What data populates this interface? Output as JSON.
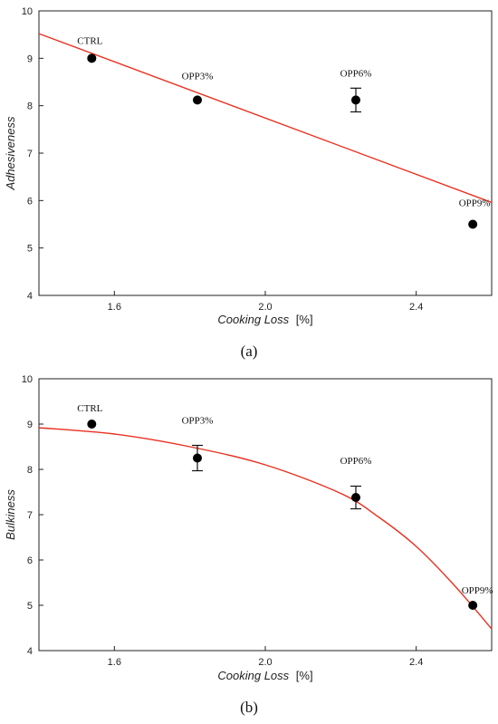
{
  "chart_data": [
    {
      "type": "scatter",
      "panel_label": "(a)",
      "xlabel": "Cooking Loss",
      "xunit": "[%]",
      "ylabel": "Adhesiveness",
      "xlim": [
        1.4,
        2.6
      ],
      "ylim": [
        4,
        10
      ],
      "xticks": [
        "1.6",
        "2.0",
        "2.4"
      ],
      "yticks": [
        "4",
        "5",
        "6",
        "7",
        "8",
        "9",
        "10"
      ],
      "xtick_values": [
        1.6,
        2.0,
        2.4
      ],
      "ytick_values": [
        4,
        5,
        6,
        7,
        8,
        9,
        10
      ],
      "points": [
        {
          "label": "CTRL",
          "x": 1.54,
          "y": 9.0,
          "err": 0
        },
        {
          "label": "OPP3%",
          "x": 1.82,
          "y": 8.12,
          "err": 0
        },
        {
          "label": "OPP6%",
          "x": 2.24,
          "y": 8.12,
          "err": 0.25
        },
        {
          "label": "OPP9%",
          "x": 2.55,
          "y": 5.5,
          "err": 0
        }
      ],
      "fit": {
        "type": "linear",
        "color": "#e8301f",
        "x": [
          1.4,
          2.6
        ],
        "y": [
          9.52,
          5.96
        ]
      },
      "grid": false
    },
    {
      "type": "scatter",
      "panel_label": "(b)",
      "xlabel": "Cooking Loss",
      "xunit": "[%]",
      "ylabel": "Bulkiness",
      "xlim": [
        1.4,
        2.6
      ],
      "ylim": [
        4,
        10
      ],
      "xticks": [
        "1.6",
        "2.0",
        "2.4"
      ],
      "yticks": [
        "4",
        "5",
        "6",
        "7",
        "8",
        "9",
        "10"
      ],
      "xtick_values": [
        1.6,
        2.0,
        2.4
      ],
      "ytick_values": [
        4,
        5,
        6,
        7,
        8,
        9,
        10
      ],
      "points": [
        {
          "label": "CTRL",
          "x": 1.54,
          "y": 9.0,
          "err": 0
        },
        {
          "label": "OPP3%",
          "x": 1.82,
          "y": 8.25,
          "err": 0.28
        },
        {
          "label": "OPP6%",
          "x": 2.24,
          "y": 7.38,
          "err": 0.25
        },
        {
          "label": "OPP9%",
          "x": 2.55,
          "y": 5.0,
          "err": 0
        }
      ],
      "fit": {
        "type": "curve",
        "color": "#e8301f",
        "x": [
          1.4,
          1.6,
          1.8,
          2.0,
          2.2,
          2.3,
          2.4,
          2.5,
          2.6
        ],
        "y": [
          8.92,
          8.78,
          8.5,
          8.1,
          7.47,
          6.95,
          6.3,
          5.45,
          4.48
        ]
      },
      "grid": false
    }
  ]
}
